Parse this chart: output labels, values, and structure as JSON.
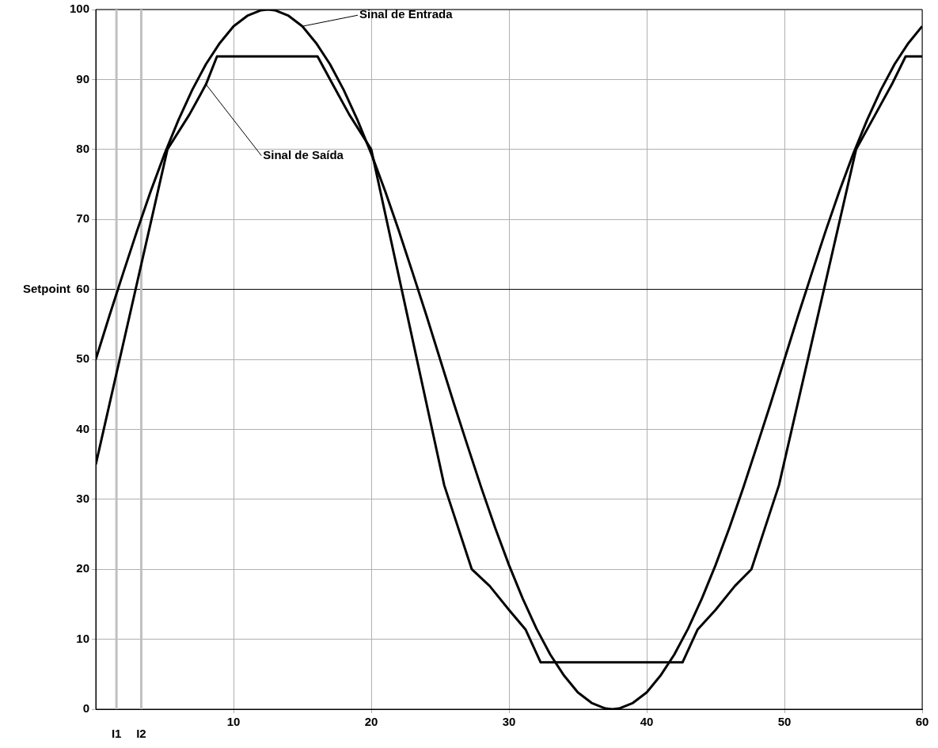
{
  "chart_data": {
    "type": "line",
    "series": [
      {
        "name": "Sinal de Entrada",
        "color": "#000000",
        "x": [
          0,
          1,
          2,
          3,
          4,
          5,
          6,
          7,
          8,
          9,
          10,
          11,
          12,
          12.5,
          13,
          14,
          15,
          16,
          17,
          18,
          19,
          20,
          21,
          22,
          23,
          24,
          25,
          26,
          27,
          28,
          29,
          30,
          31,
          32,
          33,
          34,
          35,
          36,
          37,
          37.5,
          38,
          39,
          40,
          41,
          42,
          43,
          44,
          45,
          46,
          47,
          48,
          49,
          50,
          51,
          52,
          53,
          54,
          55,
          56,
          57,
          58,
          59,
          60
        ],
        "values": [
          50,
          56.3,
          62.4,
          68.4,
          74.1,
          79.4,
          84.2,
          88.5,
          92.2,
          95.2,
          97.6,
          99.1,
          99.9,
          100,
          99.9,
          99.1,
          97.6,
          95.2,
          92.2,
          88.5,
          84.2,
          79.4,
          74.1,
          68.4,
          62.4,
          56.3,
          50,
          43.7,
          37.6,
          31.6,
          25.9,
          20.6,
          15.8,
          11.5,
          7.8,
          4.8,
          2.4,
          0.9,
          0.1,
          0,
          0.1,
          0.9,
          2.4,
          4.8,
          7.8,
          11.5,
          15.8,
          20.6,
          25.9,
          31.6,
          37.6,
          43.7,
          50,
          56.3,
          62.4,
          68.4,
          74.1,
          79.4,
          84.2,
          88.5,
          92.2,
          95.2,
          97.6
        ]
      },
      {
        "name": "Sinal de Saída",
        "color": "#000000",
        "x": [
          0,
          5.2,
          6.8,
          8,
          8.8,
          16.1,
          17.2,
          18.4,
          20,
          25.3,
          27.3,
          28.6,
          30,
          31.2,
          32.3,
          42.6,
          43.7,
          45,
          46.4,
          47.6,
          49.6,
          55.2,
          56.6,
          57.8,
          58.8,
          60
        ],
        "values": [
          35,
          80,
          85,
          89.3,
          93.3,
          93.3,
          89.3,
          85,
          80,
          32,
          20,
          17.6,
          14.2,
          11.4,
          6.7,
          6.7,
          11.4,
          14.2,
          17.6,
          20,
          32,
          80,
          85,
          89.3,
          93.3,
          93.3
        ]
      }
    ],
    "ref_lines": [
      {
        "axis": "y",
        "value": 60,
        "label": "Setpoint",
        "color": "#000000"
      },
      {
        "axis": "x",
        "value": 1.5,
        "label": "I1",
        "color": "#c0c0c0"
      },
      {
        "axis": "x",
        "value": 3.3,
        "label": "I2",
        "color": "#c0c0c0"
      }
    ],
    "xlim": [
      0,
      60
    ],
    "xticks": [
      10,
      20,
      30,
      40,
      50,
      60
    ],
    "ylim": [
      0,
      100
    ],
    "yticks": [
      0,
      10,
      20,
      30,
      40,
      50,
      60,
      70,
      80,
      90,
      100
    ],
    "grid": true,
    "marker": "none",
    "line_style": "solid"
  }
}
